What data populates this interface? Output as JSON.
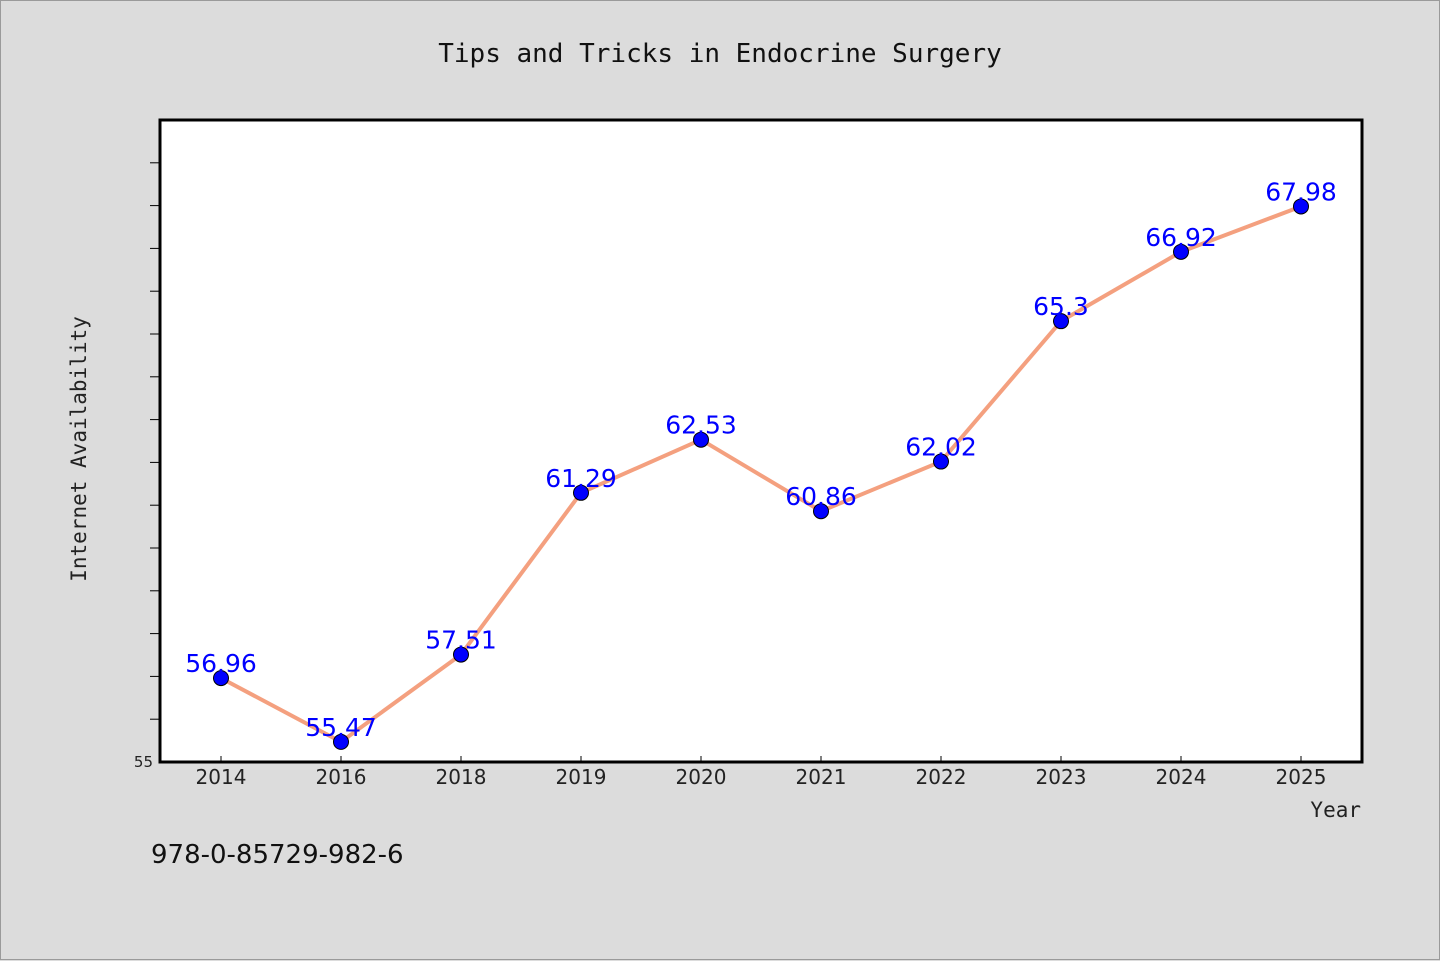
{
  "isbn": "978-0-85729-982-6",
  "chart_data": {
    "type": "line",
    "title": "Tips and Tricks in Endocrine Surgery",
    "xlabel": "Year",
    "ylabel": "Internet Availability",
    "categories": [
      "2014",
      "2016",
      "2018",
      "2019",
      "2020",
      "2021",
      "2022",
      "2023",
      "2024",
      "2025"
    ],
    "series": [
      {
        "values": [
          56.96,
          55.47,
          57.51,
          61.29,
          62.53,
          60.86,
          62.02,
          65.3,
          66.92,
          67.98
        ],
        "labels": [
          "56.96",
          "55.47",
          "57.51",
          "61.29",
          "62.53",
          "60.86",
          "62.02",
          "65.3",
          "66.92",
          "67.98"
        ],
        "line_color": "#f4a07f",
        "marker_color": "#0000ff"
      }
    ],
    "ylim": [
      55,
      70
    ],
    "y_min_label": "55",
    "grid": false,
    "legend": "none",
    "background": "#ffffff",
    "page_background": "#dcdcdc"
  }
}
